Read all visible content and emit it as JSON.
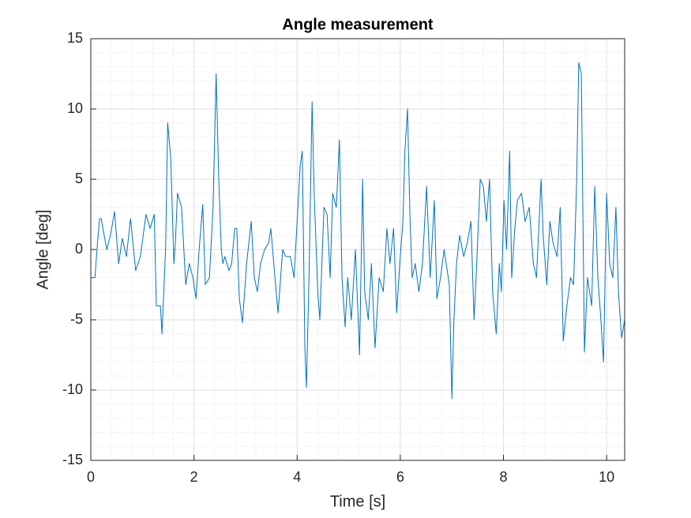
{
  "chart_data": {
    "type": "line",
    "title": "Angle measurement",
    "x_label": "Time [s]",
    "y_label": "Angle [deg]",
    "x": [
      0,
      0.08,
      0.13,
      0.17,
      0.2,
      0.31,
      0.38,
      0.46,
      0.54,
      0.61,
      0.69,
      0.77,
      0.87,
      0.96,
      1.07,
      1.15,
      1.23,
      1.27,
      1.35,
      1.38,
      1.45,
      1.49,
      1.55,
      1.61,
      1.64,
      1.68,
      1.76,
      1.84,
      1.91,
      1.98,
      2.04,
      2.1,
      2.17,
      2.22,
      2.3,
      2.37,
      2.43,
      2.48,
      2.53,
      2.56,
      2.6,
      2.68,
      2.73,
      2.79,
      2.83,
      2.88,
      2.94,
      3.02,
      3.11,
      3.17,
      3.23,
      3.29,
      3.37,
      3.45,
      3.49,
      3.57,
      3.63,
      3.72,
      3.78,
      3.87,
      3.94,
      4.0,
      4.06,
      4.1,
      4.15,
      4.18,
      4.23,
      4.29,
      4.33,
      4.4,
      4.44,
      4.52,
      4.58,
      4.64,
      4.69,
      4.76,
      4.82,
      4.87,
      4.93,
      4.98,
      5.05,
      5.13,
      5.21,
      5.27,
      5.31,
      5.38,
      5.44,
      5.51,
      5.59,
      5.67,
      5.74,
      5.8,
      5.87,
      5.93,
      5.99,
      6.05,
      6.09,
      6.14,
      6.19,
      6.23,
      6.29,
      6.36,
      6.43,
      6.51,
      6.58,
      6.66,
      6.71,
      6.78,
      6.85,
      6.89,
      6.95,
      7.0,
      7.04,
      7.09,
      7.15,
      7.23,
      7.3,
      7.37,
      7.43,
      7.47,
      7.55,
      7.61,
      7.67,
      7.73,
      7.79,
      7.86,
      7.92,
      7.96,
      8.01,
      8.06,
      8.12,
      8.16,
      8.22,
      8.27,
      8.35,
      8.42,
      8.5,
      8.58,
      8.64,
      8.73,
      8.77,
      8.84,
      8.9,
      8.96,
      9.04,
      9.1,
      9.16,
      9.23,
      9.3,
      9.36,
      9.42,
      9.46,
      9.51,
      9.57,
      9.63,
      9.71,
      9.77,
      9.83,
      9.88,
      9.94,
      10.0,
      10.06,
      10.12,
      10.18,
      10.23,
      10.29,
      10.35
    ],
    "values": [
      -2,
      -2,
      0.5,
      2.2,
      2.2,
      0,
      1,
      2.7,
      -1,
      0.8,
      -0.5,
      2.2,
      -1.5,
      -0.5,
      2.5,
      1.5,
      2.5,
      -4,
      -4,
      -6,
      0,
      9,
      6.5,
      -1,
      0.5,
      4,
      3,
      -2.5,
      -1,
      -2,
      -3.5,
      0,
      3.2,
      -2.5,
      -2,
      3,
      12.5,
      5,
      0,
      -1,
      -0.5,
      -1.5,
      -1,
      1.5,
      1.5,
      -3.5,
      -5.2,
      -1,
      2,
      -2,
      -3,
      -1,
      0,
      0.5,
      1.5,
      -2,
      -4.5,
      0,
      -0.5,
      -0.5,
      -2,
      2,
      6,
      7,
      -7,
      -9.8,
      -2,
      10.5,
      4,
      -3,
      -5,
      3,
      2.5,
      -2,
      4,
      3,
      7.8,
      -2,
      -5.5,
      -2,
      -5,
      0,
      -7.5,
      5,
      -3,
      -5,
      -1,
      -7,
      -2,
      -3,
      1.5,
      -1,
      1.5,
      -4.5,
      -1,
      2,
      7,
      10,
      2,
      -2,
      -1,
      -3,
      -1,
      4.5,
      -2,
      3.5,
      -3.5,
      -2,
      0,
      -1,
      -2.5,
      -10.6,
      -5,
      -1,
      1,
      -0.5,
      0.5,
      2,
      -5,
      -2,
      5,
      4.5,
      2,
      5,
      -3,
      -6,
      -1,
      -3,
      3.5,
      0,
      7,
      -2,
      1.5,
      3.5,
      4,
      2,
      3,
      -1,
      -2,
      5,
      1,
      -2.5,
      2,
      0.5,
      -0.5,
      3,
      -6.5,
      -4,
      -2,
      -2.5,
      5,
      13.3,
      12.5,
      -7.3,
      -2,
      -4,
      4.5,
      -2,
      -4.5,
      -8,
      4,
      -1,
      -2,
      3,
      -3,
      -6.3,
      -5
    ],
    "color": "#0072bd",
    "xlim": [
      0,
      10.35
    ],
    "ylim": [
      -15,
      15
    ],
    "xticks": [
      0,
      2,
      4,
      6,
      8,
      10
    ],
    "yticks": [
      -15,
      -10,
      -5,
      0,
      5,
      10,
      15
    ],
    "xminorticks": [
      0,
      0.4,
      0.8,
      1.2,
      1.6,
      2,
      2.4,
      2.8,
      3.2,
      3.6,
      4,
      4.4,
      4.8,
      5.2,
      5.6,
      6,
      6.4,
      6.8,
      7.2,
      7.6,
      8,
      8.4,
      8.8,
      9.2,
      9.6,
      10
    ],
    "yminorticks": [
      -15,
      -14,
      -13,
      -12,
      -11,
      -10,
      -9,
      -8,
      -7,
      -6,
      -5,
      -4,
      -3,
      -2,
      -1,
      0,
      1,
      2,
      3,
      4,
      5,
      6,
      7,
      8,
      9,
      10,
      11,
      12,
      13,
      14,
      15
    ],
    "grid": true,
    "minor_grid": true
  }
}
